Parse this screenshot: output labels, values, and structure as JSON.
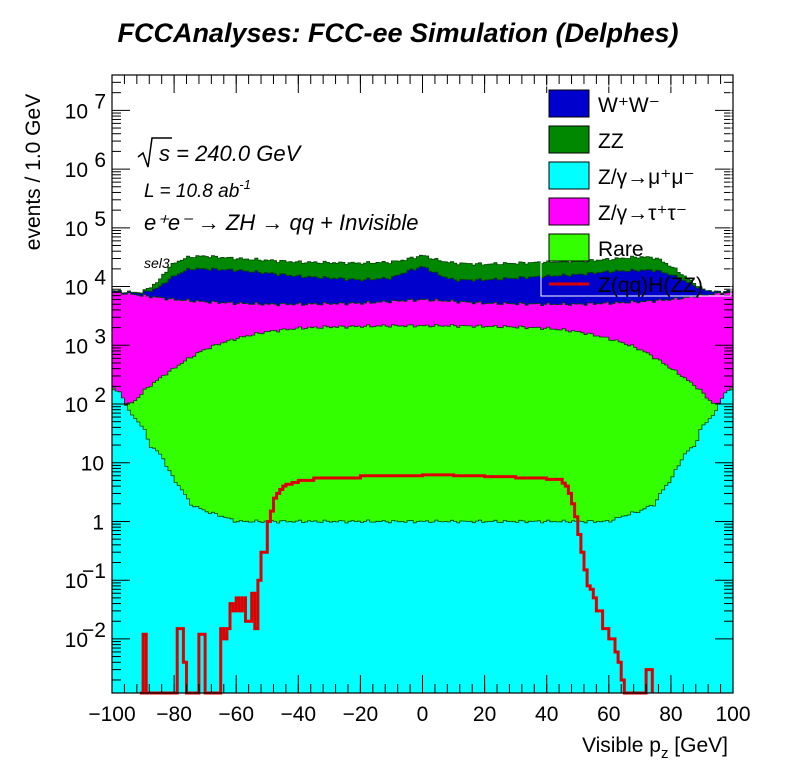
{
  "title": "FCCAnalyses: FCC-ee Simulation (Delphes)",
  "chart_data": {
    "type": "stacked-histogram",
    "log_y": true,
    "xlabel_main": "Visible p",
    "xlabel_sub": "z",
    "xlabel_unit": " [GeV]",
    "ylabel": "events / 1.0 GeV",
    "xlim": [
      -100,
      100
    ],
    "ylim": [
      0.0012,
      40000000
    ],
    "x_ticks": [
      {
        "v": -100,
        "label": "−100"
      },
      {
        "v": -80,
        "label": "−80"
      },
      {
        "v": -60,
        "label": "−60"
      },
      {
        "v": -40,
        "label": "−40"
      },
      {
        "v": -20,
        "label": "−20"
      },
      {
        "v": 0,
        "label": "0"
      },
      {
        "v": 20,
        "label": "20"
      },
      {
        "v": 40,
        "label": "40"
      },
      {
        "v": 60,
        "label": "60"
      },
      {
        "v": 80,
        "label": "80"
      },
      {
        "v": 100,
        "label": "100"
      }
    ],
    "y_ticks": [
      {
        "v": 0.01,
        "base": "10",
        "exp": "−2"
      },
      {
        "v": 0.1,
        "base": "10",
        "exp": "−1"
      },
      {
        "v": 1,
        "base": "1",
        "exp": ""
      },
      {
        "v": 10,
        "base": "10",
        "exp": ""
      },
      {
        "v": 100,
        "base": "10",
        "exp": "2"
      },
      {
        "v": 1000,
        "base": "10",
        "exp": "3"
      },
      {
        "v": 10000,
        "base": "10",
        "exp": "4"
      },
      {
        "v": 100000,
        "base": "10",
        "exp": "5"
      },
      {
        "v": 1000000,
        "base": "10",
        "exp": "6"
      },
      {
        "v": 10000000,
        "base": "10",
        "exp": "7"
      }
    ],
    "annotations": {
      "sqrt_s": "s = 240.0 GeV",
      "lumi_main": "L = 10.8 ab",
      "lumi_exp": "-1",
      "process": "e⁺e⁻ → ZH → qq + Invisible",
      "selection": "sel3"
    },
    "stack_order_bottom_to_top": [
      "Z/γ→μ⁺μ⁻",
      "Rare",
      "Z/γ→τ⁺τ⁻",
      "W⁺W⁻",
      "ZZ"
    ],
    "series": [
      {
        "name": "W⁺W⁻",
        "color": "#0000cc",
        "kind": "fill",
        "cumulative_top_x": [
          -100,
          -95,
          -90,
          -85,
          -80,
          -75,
          -70,
          -60,
          -50,
          -40,
          -20,
          -10,
          -5,
          0,
          5,
          10,
          20,
          40,
          50,
          60,
          70,
          75,
          80,
          85,
          90,
          95,
          100
        ],
        "cumulative_top_y": [
          8500,
          8000,
          7800,
          9500,
          15000,
          20000,
          20000,
          19000,
          17000,
          15000,
          13000,
          14000,
          18000,
          22000,
          16000,
          13000,
          13000,
          15000,
          16000,
          18000,
          19000,
          19000,
          16000,
          12000,
          9000,
          8000,
          8500
        ]
      },
      {
        "name": "ZZ",
        "color": "#008800",
        "kind": "fill",
        "cumulative_top_x": [
          -100,
          -95,
          -90,
          -85,
          -80,
          -75,
          -70,
          -60,
          -50,
          -40,
          -20,
          -10,
          -5,
          0,
          5,
          10,
          20,
          40,
          50,
          60,
          70,
          75,
          80,
          85,
          90,
          95,
          100
        ],
        "cumulative_top_y": [
          8500,
          8000,
          8000,
          12000,
          25000,
          32000,
          33000,
          30000,
          28000,
          26000,
          25000,
          26000,
          29000,
          34000,
          28000,
          25000,
          24000,
          26000,
          27000,
          29000,
          32000,
          31000,
          22000,
          14000,
          9000,
          8000,
          8500
        ]
      },
      {
        "name": "Z/γ→μ⁺μ⁻",
        "color": "#00ffff",
        "kind": "fill",
        "x": [
          -100,
          -97,
          -95,
          -93,
          -90,
          -88,
          -85,
          -82,
          -80,
          -75,
          -70,
          -60,
          -50,
          -40,
          -30,
          -20,
          -10,
          0,
          10,
          20,
          30,
          40,
          50,
          60,
          70,
          75,
          80,
          82,
          85,
          88,
          90,
          93,
          95,
          97,
          100
        ],
        "y": [
          180,
          150,
          80,
          60,
          40,
          20,
          15,
          8,
          5,
          2,
          1.5,
          1,
          1,
          1,
          1,
          1,
          1,
          1,
          1,
          1,
          1,
          1,
          1,
          1,
          1.5,
          2,
          5,
          8,
          15,
          20,
          40,
          60,
          80,
          150,
          180
        ]
      },
      {
        "name": "Z/γ→τ⁺τ⁻",
        "color": "#ff00ff",
        "kind": "fill",
        "cumulative_top_x": [
          -100,
          -95,
          -90,
          -85,
          -80,
          -70,
          -60,
          -50,
          -40,
          -20,
          0,
          20,
          40,
          50,
          60,
          70,
          80,
          85,
          90,
          95,
          100
        ],
        "cumulative_top_y": [
          8000,
          7600,
          7000,
          6500,
          6000,
          5500,
          5200,
          5000,
          5000,
          5200,
          6000,
          5200,
          5000,
          5000,
          5200,
          5500,
          6000,
          6500,
          7000,
          7600,
          8000
        ]
      },
      {
        "name": "Rare",
        "color": "#33ff00",
        "kind": "fill",
        "cumulative_top_x": [
          -100,
          -98,
          -96,
          -94,
          -92,
          -90,
          -88,
          -85,
          -80,
          -75,
          -70,
          -60,
          -50,
          -40,
          -30,
          -20,
          -10,
          0,
          10,
          20,
          30,
          40,
          50,
          60,
          70,
          75,
          80,
          85,
          88,
          90,
          92,
          94,
          96,
          98,
          100
        ],
        "cumulative_top_y": [
          200,
          150,
          100,
          100,
          120,
          160,
          200,
          260,
          400,
          600,
          850,
          1300,
          1700,
          1950,
          2050,
          2100,
          2150,
          2150,
          2150,
          2100,
          2050,
          1950,
          1700,
          1300,
          850,
          600,
          400,
          260,
          200,
          160,
          120,
          100,
          100,
          150,
          200
        ]
      },
      {
        "name": "Z(qq)H(ZZ)",
        "color": "#dd0000",
        "kind": "line",
        "x": [
          -91,
          -90,
          -89,
          -88,
          -80,
          -79,
          -77,
          -76,
          -74,
          -72,
          -70,
          -66,
          -65,
          -64,
          -63,
          -62,
          -61,
          -60,
          -59,
          -58,
          -57,
          -55,
          -54,
          -53,
          -52,
          -51,
          -50,
          -49,
          -48,
          -47,
          -46,
          -45,
          -44,
          -42,
          -40,
          -35,
          -30,
          -20,
          -10,
          0,
          10,
          20,
          30,
          40,
          45,
          46,
          47,
          48,
          49,
          50,
          51,
          52,
          53,
          54,
          55,
          56,
          58,
          60,
          62,
          63,
          64,
          65,
          70,
          72,
          74
        ],
        "y": [
          0.0012,
          0.012,
          0.0012,
          0.0012,
          0.0012,
          0.015,
          0.004,
          0.0012,
          0.0012,
          0.012,
          0.0012,
          0.0012,
          0.015,
          0.01,
          0.015,
          0.04,
          0.03,
          0.05,
          0.03,
          0.05,
          0.02,
          0.06,
          0.015,
          0.1,
          0.3,
          0.3,
          1,
          1.5,
          2.5,
          3,
          3.5,
          4,
          4.3,
          4.6,
          5,
          5.5,
          5.5,
          6,
          6,
          6.2,
          6,
          5.8,
          5.5,
          5.2,
          4.5,
          4,
          3,
          2,
          1.2,
          0.6,
          0.3,
          0.15,
          0.08,
          0.07,
          0.05,
          0.03,
          0.015,
          0.01,
          0.006,
          0.004,
          0.002,
          0.0012,
          0.0012,
          0.003,
          0.0012
        ]
      }
    ],
    "legend": {
      "placement": "top-right",
      "entries": [
        {
          "label": "W⁺W⁻",
          "color": "#0000cc",
          "kind": "box"
        },
        {
          "label": "ZZ",
          "color": "#008800",
          "kind": "box"
        },
        {
          "label": "Z/γ→μ⁺μ⁻",
          "color": "#00ffff",
          "kind": "box"
        },
        {
          "label": "Z/γ→τ⁺τ⁻",
          "color": "#ff00ff",
          "kind": "box"
        },
        {
          "label": "Rare",
          "color": "#33ff00",
          "kind": "box"
        },
        {
          "label": "Z(qq)H(ZZ)",
          "color": "#dd0000",
          "kind": "line"
        }
      ]
    }
  }
}
